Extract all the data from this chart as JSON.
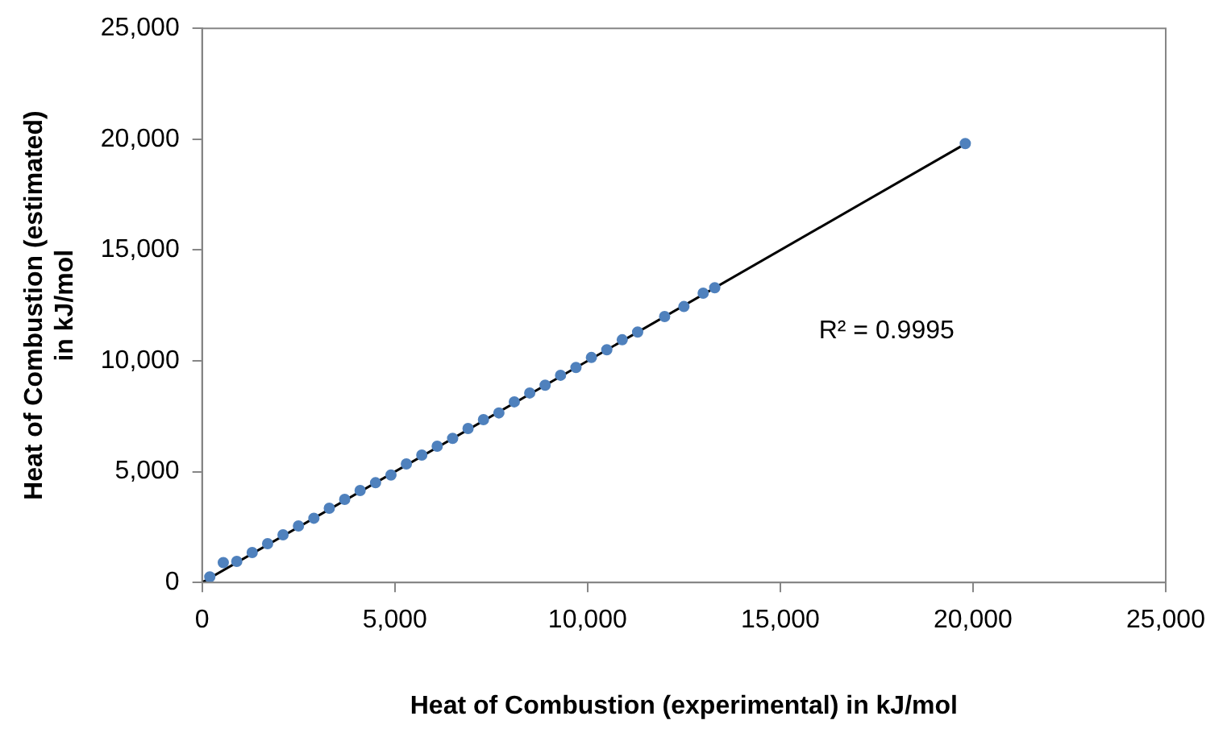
{
  "chart_data": {
    "type": "scatter",
    "xlabel": "Heat of Combustion (experimental) in kJ/mol",
    "ylabel": "Heat of Combustion (estimated)\nin kJ/mol",
    "xlim": [
      0,
      25000
    ],
    "ylim": [
      0,
      25000
    ],
    "xticks": [
      0,
      {
        "value": 5000,
        "label": "5,000"
      },
      {
        "value": 10000,
        "label": "10,000"
      },
      {
        "value": 15000,
        "label": "15,000"
      },
      {
        "value": 20000,
        "label": "20,000"
      },
      {
        "value": 25000,
        "label": "25,000"
      }
    ],
    "yticks": [
      0,
      {
        "value": 5000,
        "label": "5,000"
      },
      {
        "value": 10000,
        "label": "10,000"
      },
      {
        "value": 15000,
        "label": "15,000"
      },
      {
        "value": 20000,
        "label": "20,000"
      },
      {
        "value": 25000,
        "label": "25,000"
      }
    ],
    "grid": false,
    "legend": false,
    "marker": "circle",
    "annotations": [
      "R² = 0.9995"
    ],
    "series": [
      {
        "color": "#4f81bd",
        "x": [
          200,
          550,
          900,
          1300,
          1700,
          2100,
          2500,
          2900,
          3300,
          3700,
          4100,
          4500,
          4900,
          5300,
          5700,
          6100,
          6500,
          6900,
          7300,
          7700,
          8100,
          8500,
          8900,
          9300,
          9700,
          10100,
          10500,
          10900,
          11300,
          12000,
          12500,
          13000,
          13300,
          19800
        ],
        "values": [
          250,
          900,
          950,
          1350,
          1750,
          2150,
          2550,
          2900,
          3350,
          3750,
          4150,
          4500,
          4850,
          5350,
          5750,
          6150,
          6500,
          6950,
          7350,
          7650,
          8150,
          8550,
          8900,
          9350,
          9700,
          10150,
          10500,
          10950,
          11300,
          12000,
          12450,
          13050,
          13300,
          19800
        ]
      },
      {
        "type": "line",
        "color": "#000000",
        "marker": "none",
        "x": [
          0,
          19800
        ],
        "values": [
          0,
          19790
        ]
      }
    ]
  }
}
